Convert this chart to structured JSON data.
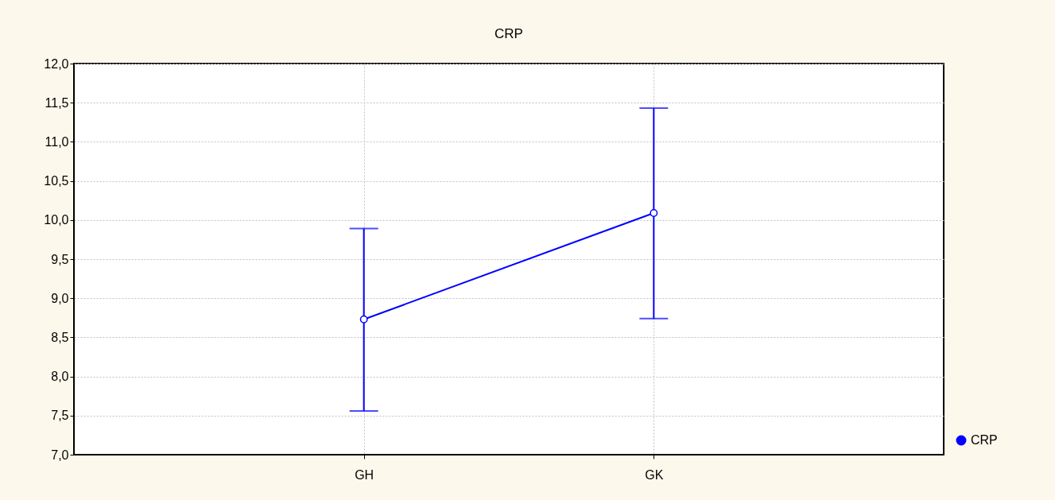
{
  "chart_data": {
    "type": "line",
    "title": "CRP",
    "categories": [
      "GH",
      "GK"
    ],
    "series": [
      {
        "name": "CRP",
        "color": "#0000ff",
        "values": [
          8.73,
          10.09
        ],
        "errors": [
          [
            7.56,
            9.89
          ],
          [
            8.74,
            11.43
          ]
        ]
      }
    ],
    "ylim": [
      7,
      12
    ],
    "yticks": [
      {
        "value": 7,
        "label": "7,0"
      },
      {
        "value": 7.5,
        "label": "7,5"
      },
      {
        "value": 8,
        "label": "8,0"
      },
      {
        "value": 8.5,
        "label": "8,5"
      },
      {
        "value": 9,
        "label": "9,0"
      },
      {
        "value": 9.5,
        "label": "9,5"
      },
      {
        "value": 10,
        "label": "10,0"
      },
      {
        "value": 10.5,
        "label": "10,5"
      },
      {
        "value": 11,
        "label": "11,0"
      },
      {
        "value": 11.5,
        "label": "11,5"
      },
      {
        "value": 12,
        "label": "12,0"
      }
    ],
    "grid": true,
    "legend": "bottom right",
    "marker": "circle",
    "line_style": "solid"
  }
}
